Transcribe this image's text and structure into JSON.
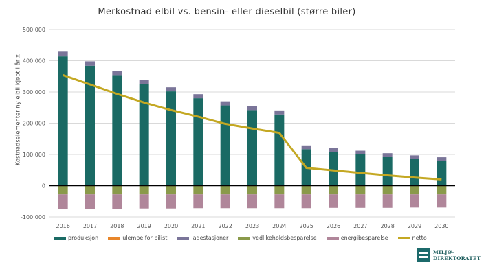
{
  "chart_data": {
    "type": "bar",
    "title": "Merkostnad elbil vs. bensin- eller dieselbil (større biler)",
    "ylabel": "Kostnadselementer ny elbil kjøpt i år x",
    "xlabel": "",
    "ylim": [
      -100000,
      500000
    ],
    "yticks": [
      500000,
      400000,
      300000,
      200000,
      100000,
      0,
      -100000
    ],
    "ytick_labels": [
      "500 000",
      "400 000",
      "300 000",
      "200 000",
      "100 000",
      "0",
      "-100 000"
    ],
    "grid": true,
    "legend_position": "bottom",
    "categories": [
      "2016",
      "2017",
      "2018",
      "2019",
      "2020",
      "2021",
      "2022",
      "2023",
      "2024",
      "2025",
      "2026",
      "2027",
      "2028",
      "2029",
      "2030"
    ],
    "series": [
      {
        "name": "produksjon",
        "type": "bar",
        "color": "#1a6a64",
        "values": [
          414000,
          384000,
          354000,
          326000,
          302000,
          280000,
          257000,
          242000,
          228000,
          117000,
          108000,
          100000,
          93000,
          86000,
          80000
        ]
      },
      {
        "name": "ulempe for bilist",
        "type": "bar",
        "color": "#e8862a",
        "values": [
          0,
          0,
          0,
          0,
          0,
          0,
          0,
          0,
          0,
          0,
          0,
          0,
          0,
          0,
          0
        ]
      },
      {
        "name": "ladestasjoner",
        "type": "bar",
        "color": "#7a7599",
        "values": [
          15000,
          14000,
          14000,
          13000,
          13000,
          13000,
          13000,
          13000,
          13000,
          12000,
          12000,
          12000,
          11000,
          11000,
          11000
        ]
      },
      {
        "name": "vedlikeholdsbesparelse",
        "type": "bar",
        "color": "#8a9a4a",
        "values": [
          -28000,
          -28000,
          -28000,
          -28000,
          -28000,
          -28000,
          -28000,
          -28000,
          -28000,
          -28000,
          -28000,
          -28000,
          -28000,
          -28000,
          -28000
        ]
      },
      {
        "name": "energibesparelse",
        "type": "bar",
        "color": "#b0869a",
        "values": [
          -47000,
          -46000,
          -46000,
          -45000,
          -45000,
          -44000,
          -44000,
          -44000,
          -44000,
          -44000,
          -43000,
          -43000,
          -43000,
          -42000,
          -42000
        ]
      },
      {
        "name": "netto",
        "type": "line",
        "color": "#c4a823",
        "values": [
          354000,
          324000,
          294000,
          266000,
          242000,
          221000,
          198000,
          183000,
          169000,
          57000,
          49000,
          41000,
          33000,
          26000,
          20000
        ]
      }
    ]
  },
  "logo": {
    "line1": "MILJØ-",
    "line2": "DIREKTORATET"
  }
}
